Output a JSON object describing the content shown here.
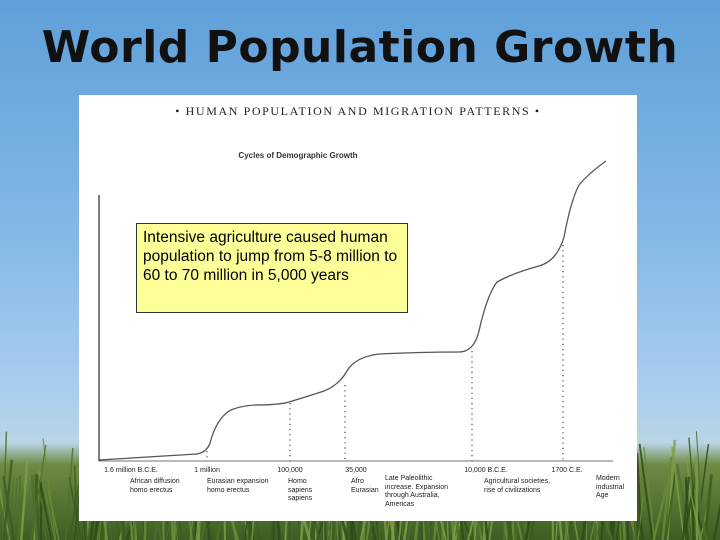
{
  "slide": {
    "title": "World Population Growth",
    "callout": "Intensive agriculture caused human population to jump from 5-8 million to 60 to 70 million in 5,000 years"
  },
  "figure": {
    "header": "• HUMAN POPULATION AND MIGRATION PATTERNS •",
    "subtitle": "Cycles of Demographic Growth"
  },
  "chart_data": {
    "type": "line",
    "title": "Cycles of Demographic Growth",
    "xlabel": "",
    "ylabel": "",
    "grid": false,
    "legend": "none",
    "x_ticks": [
      "1.6 million B.C.E.",
      "1 million",
      "100,000",
      "35,000",
      "10,000 B.C.E.",
      "1700 C.E."
    ],
    "events": [
      "African diffusion homo erectus",
      "Eurasian expansion homo erectus",
      "Homo sapiens sapiens",
      "Afro Eurasian",
      "Late Paleolithic increase. Expansion through Australia, Americas",
      "Agricultural societies, rise of civilizations",
      "Modern industrial Age"
    ],
    "curve_description_values": {
      "stage": [
        "start",
        "after 1 million",
        "after 35,000",
        "after 10,000 B.C.E.",
        "after 1700 C.E."
      ],
      "relative_level": [
        0.02,
        0.18,
        0.32,
        0.56,
        1.0
      ]
    }
  },
  "colors": {
    "sky": "#86b9e6",
    "grass": "#3f5d22",
    "callout_fill": "#ffff99",
    "curve": "#555555"
  }
}
